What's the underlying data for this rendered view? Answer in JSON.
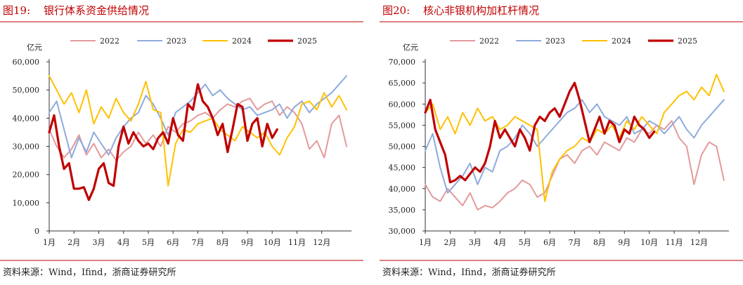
{
  "chart_data": [
    {
      "type": "line",
      "figure_label": "图19:",
      "title": "银行体系资金供给情况",
      "ylabel": "亿元",
      "ylim": [
        0,
        60000
      ],
      "yticks": [
        0,
        10000,
        20000,
        30000,
        40000,
        50000,
        60000
      ],
      "ytick_labels": [
        "0",
        "10,000",
        "20,000",
        "30,000",
        "40,000",
        "50,000",
        "60,000"
      ],
      "xlim": [
        0,
        12.2
      ],
      "categories": [
        "1月",
        "2月",
        "3月",
        "4月",
        "5月",
        "6月",
        "7月",
        "8月",
        "9月",
        "10月",
        "11月",
        "12月"
      ],
      "legend": [
        "2022",
        "2023",
        "2024",
        "2025"
      ],
      "source": "资料来源：Wind，Ifind，浙商证券研究所",
      "series": [
        {
          "name": "2022",
          "color": "#E39A9C",
          "width": 2,
          "x": [
            0,
            0.3,
            0.6,
            0.9,
            1.2,
            1.5,
            1.8,
            2.1,
            2.4,
            2.7,
            3.0,
            3.3,
            3.6,
            3.9,
            4.2,
            4.5,
            4.8,
            5.1,
            5.4,
            5.7,
            6.0,
            6.3,
            6.6,
            6.9,
            7.2,
            7.5,
            7.8,
            8.1,
            8.4,
            8.7,
            9.0,
            9.3,
            9.6,
            9.9,
            10.2,
            10.5,
            10.8,
            11.1,
            11.4,
            11.7,
            12.0
          ],
          "values": [
            36000,
            30000,
            26000,
            29000,
            34000,
            27000,
            31000,
            26000,
            29000,
            25000,
            28000,
            30000,
            35000,
            31000,
            34000,
            30000,
            37000,
            35000,
            38000,
            39000,
            41000,
            42000,
            40000,
            43000,
            45000,
            44000,
            46000,
            47000,
            43000,
            45000,
            46000,
            41000,
            44000,
            42000,
            38000,
            29000,
            32000,
            26000,
            38000,
            41000,
            30000
          ]
        },
        {
          "name": "2023",
          "color": "#8FAADC",
          "width": 2,
          "x": [
            0,
            0.3,
            0.6,
            0.9,
            1.2,
            1.5,
            1.8,
            2.1,
            2.4,
            2.7,
            3.0,
            3.3,
            3.6,
            3.9,
            4.2,
            4.5,
            4.8,
            5.1,
            5.4,
            5.7,
            6.0,
            6.3,
            6.6,
            6.9,
            7.2,
            7.5,
            7.8,
            8.1,
            8.4,
            8.7,
            9.0,
            9.3,
            9.6,
            9.9,
            10.2,
            10.5,
            10.8,
            11.1,
            11.4,
            11.7,
            12.0
          ],
          "values": [
            42000,
            46000,
            36000,
            26000,
            33000,
            28000,
            35000,
            31000,
            27000,
            33000,
            37000,
            40000,
            42000,
            48000,
            45000,
            40000,
            34000,
            42000,
            44000,
            46000,
            49000,
            52000,
            48000,
            50000,
            47000,
            45000,
            43000,
            44000,
            41000,
            42000,
            43000,
            45000,
            40000,
            44000,
            46000,
            42000,
            45000,
            47000,
            49000,
            52000,
            55000
          ]
        },
        {
          "name": "2024",
          "color": "#FFC000",
          "width": 2,
          "x": [
            0,
            0.3,
            0.6,
            0.9,
            1.2,
            1.5,
            1.8,
            2.1,
            2.4,
            2.7,
            3.0,
            3.3,
            3.6,
            3.9,
            4.2,
            4.5,
            4.8,
            5.1,
            5.4,
            5.7,
            6.0,
            6.3,
            6.6,
            6.9,
            7.2,
            7.5,
            7.8,
            8.1,
            8.4,
            8.7,
            9.0,
            9.3,
            9.6,
            9.9,
            10.2,
            10.5,
            10.8,
            11.1,
            11.4,
            11.7,
            12.0
          ],
          "values": [
            55000,
            50000,
            45000,
            49000,
            42000,
            50000,
            38000,
            44000,
            40000,
            47000,
            42000,
            39000,
            45000,
            53000,
            43000,
            42000,
            16000,
            31000,
            36000,
            35000,
            38000,
            39000,
            40000,
            36000,
            34000,
            32000,
            37000,
            35000,
            33000,
            35000,
            30000,
            27000,
            33000,
            37000,
            45000,
            46000,
            43000,
            49000,
            44000,
            48000,
            43000
          ]
        },
        {
          "name": "2025",
          "color": "#C00000",
          "width": 3.2,
          "x": [
            0,
            0.2,
            0.4,
            0.6,
            0.8,
            1.0,
            1.2,
            1.4,
            1.6,
            1.8,
            2.0,
            2.2,
            2.4,
            2.6,
            2.8,
            3.0,
            3.2,
            3.4,
            3.6,
            3.8,
            4.0,
            4.2,
            4.4,
            4.6,
            4.8,
            5.0,
            5.2,
            5.4,
            5.6,
            5.8,
            6.0,
            6.2,
            6.4,
            6.6,
            6.8,
            7.0,
            7.2,
            7.4,
            7.6,
            7.8,
            8.0,
            8.2,
            8.4,
            8.6,
            8.8,
            9.0,
            9.2
          ],
          "values": [
            35000,
            41000,
            30000,
            22000,
            24000,
            15000,
            15000,
            15500,
            11000,
            15000,
            22000,
            24000,
            17000,
            16000,
            30000,
            37000,
            31000,
            35000,
            32000,
            30000,
            31000,
            29000,
            33000,
            35000,
            31000,
            40000,
            34000,
            32000,
            45000,
            43000,
            52000,
            46000,
            44000,
            40000,
            34000,
            38000,
            28000,
            36000,
            45000,
            44000,
            32000,
            38000,
            40000,
            30000,
            38000,
            33000,
            36000
          ]
        }
      ]
    },
    {
      "type": "line",
      "figure_label": "图20:",
      "title": "核心非银机构加杠杆情况",
      "ylabel": "亿元",
      "ylim": [
        30000,
        70000
      ],
      "yticks": [
        30000,
        35000,
        40000,
        45000,
        50000,
        55000,
        60000,
        65000,
        70000
      ],
      "ytick_labels": [
        "30,000",
        "35,000",
        "40,000",
        "45,000",
        "50,000",
        "55,000",
        "60,000",
        "65,000",
        "70,000"
      ],
      "xlim": [
        0,
        12.2
      ],
      "categories": [
        "1月",
        "2月",
        "3月",
        "4月",
        "5月",
        "6月",
        "7月",
        "8月",
        "9月",
        "10月",
        "11月",
        "12月"
      ],
      "legend": [
        "2022",
        "2023",
        "2024",
        "2025"
      ],
      "source": "资料来源：Wind，Ifind，浙商证券研究所",
      "series": [
        {
          "name": "2022",
          "color": "#E39A9C",
          "width": 2,
          "x": [
            0,
            0.3,
            0.6,
            0.9,
            1.2,
            1.5,
            1.8,
            2.1,
            2.4,
            2.7,
            3.0,
            3.3,
            3.6,
            3.9,
            4.2,
            4.5,
            4.8,
            5.1,
            5.4,
            5.7,
            6.0,
            6.3,
            6.6,
            6.9,
            7.2,
            7.5,
            7.8,
            8.1,
            8.4,
            8.7,
            9.0,
            9.3,
            9.6,
            9.9,
            10.2,
            10.5,
            10.8,
            11.1,
            11.4,
            11.7,
            12.0
          ],
          "values": [
            41000,
            38000,
            37000,
            40000,
            38000,
            36000,
            39000,
            35000,
            36000,
            35500,
            37000,
            39000,
            40000,
            42000,
            41000,
            38000,
            39000,
            43000,
            47000,
            48000,
            46000,
            49000,
            50000,
            48000,
            51000,
            50000,
            49000,
            52000,
            51000,
            54000,
            53000,
            55000,
            54000,
            56000,
            52000,
            50000,
            41000,
            48000,
            51000,
            50000,
            42000
          ]
        },
        {
          "name": "2023",
          "color": "#8FAADC",
          "width": 2,
          "x": [
            0,
            0.3,
            0.6,
            0.9,
            1.2,
            1.5,
            1.8,
            2.1,
            2.4,
            2.7,
            3.0,
            3.3,
            3.6,
            3.9,
            4.2,
            4.5,
            4.8,
            5.1,
            5.4,
            5.7,
            6.0,
            6.3,
            6.6,
            6.9,
            7.2,
            7.5,
            7.8,
            8.1,
            8.4,
            8.7,
            9.0,
            9.3,
            9.6,
            9.9,
            10.2,
            10.5,
            10.8,
            11.1,
            11.4,
            11.7,
            12.0
          ],
          "values": [
            49000,
            53000,
            45000,
            39000,
            41000,
            43000,
            46000,
            41000,
            45000,
            44000,
            49000,
            50000,
            52000,
            55000,
            53000,
            50000,
            52000,
            54000,
            56000,
            58000,
            59000,
            61000,
            58000,
            60000,
            57000,
            56000,
            55000,
            57000,
            53000,
            54000,
            56000,
            55000,
            53000,
            55000,
            57000,
            54000,
            52000,
            55000,
            57000,
            59000,
            61000
          ]
        },
        {
          "name": "2024",
          "color": "#FFC000",
          "width": 2,
          "x": [
            0,
            0.3,
            0.6,
            0.9,
            1.2,
            1.5,
            1.8,
            2.1,
            2.4,
            2.7,
            3.0,
            3.3,
            3.6,
            3.9,
            4.2,
            4.5,
            4.8,
            5.1,
            5.4,
            5.7,
            6.0,
            6.3,
            6.6,
            6.9,
            7.2,
            7.5,
            7.8,
            8.1,
            8.4,
            8.7,
            9.0,
            9.3,
            9.6,
            9.9,
            10.2,
            10.5,
            10.8,
            11.1,
            11.4,
            11.7,
            12.0
          ],
          "values": [
            58000,
            60000,
            54000,
            57000,
            53000,
            58000,
            55000,
            59000,
            56000,
            57000,
            54000,
            55000,
            57000,
            56000,
            55000,
            54000,
            37000,
            44000,
            47000,
            49000,
            50000,
            52000,
            51000,
            54000,
            53000,
            55000,
            52000,
            56000,
            54000,
            57000,
            55000,
            53000,
            58000,
            60000,
            62000,
            63000,
            61000,
            64000,
            62000,
            67000,
            63000
          ]
        },
        {
          "name": "2025",
          "color": "#C00000",
          "width": 3.2,
          "x": [
            0,
            0.2,
            0.4,
            0.6,
            0.8,
            1.0,
            1.2,
            1.4,
            1.6,
            1.8,
            2.0,
            2.2,
            2.4,
            2.6,
            2.8,
            3.0,
            3.2,
            3.4,
            3.6,
            3.8,
            4.0,
            4.2,
            4.4,
            4.6,
            4.8,
            5.0,
            5.2,
            5.4,
            5.6,
            5.8,
            6.0,
            6.2,
            6.4,
            6.6,
            6.8,
            7.0,
            7.2,
            7.4,
            7.6,
            7.8,
            8.0,
            8.2,
            8.4,
            8.6,
            8.8,
            9.0,
            9.2
          ],
          "values": [
            58000,
            61000,
            54000,
            51000,
            48000,
            41500,
            42000,
            43000,
            42000,
            43500,
            45000,
            44000,
            46000,
            50000,
            56000,
            52000,
            54000,
            52000,
            50000,
            54000,
            52000,
            49000,
            55000,
            57000,
            56000,
            58000,
            59000,
            57000,
            60000,
            63000,
            65000,
            61000,
            56000,
            51000,
            54000,
            57000,
            53000,
            56000,
            55000,
            51000,
            54000,
            53000,
            57000,
            55000,
            54000,
            52000,
            53500
          ]
        }
      ]
    }
  ]
}
